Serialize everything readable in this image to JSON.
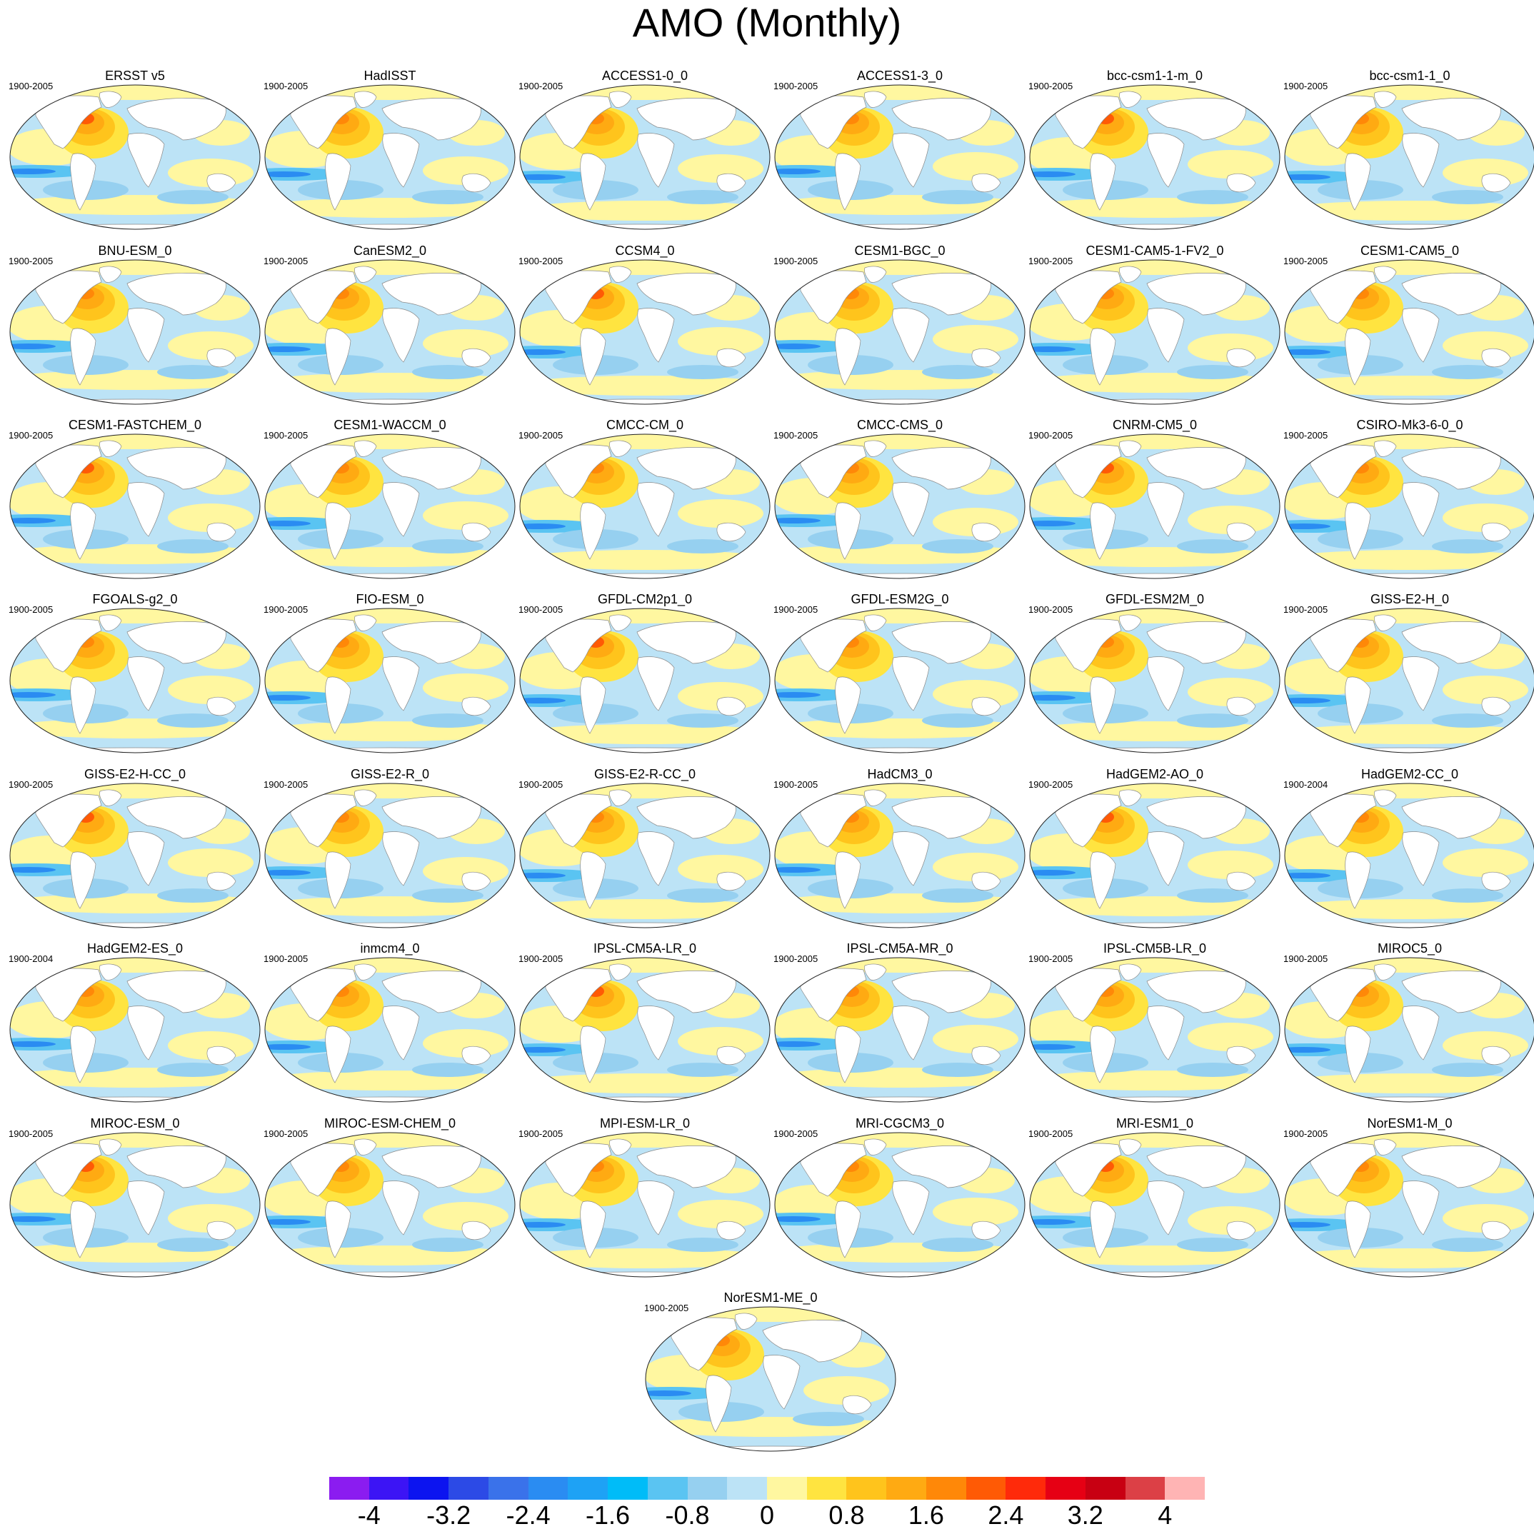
{
  "title": "AMO (Monthly)",
  "panels": [
    {
      "name": "ERSST v5",
      "period": "1900-2005"
    },
    {
      "name": "HadISST",
      "period": "1900-2005"
    },
    {
      "name": "ACCESS1-0_0",
      "period": "1900-2005"
    },
    {
      "name": "ACCESS1-3_0",
      "period": "1900-2005"
    },
    {
      "name": "bcc-csm1-1-m_0",
      "period": "1900-2005"
    },
    {
      "name": "bcc-csm1-1_0",
      "period": "1900-2005"
    },
    {
      "name": "BNU-ESM_0",
      "period": "1900-2005"
    },
    {
      "name": "CanESM2_0",
      "period": "1900-2005"
    },
    {
      "name": "CCSM4_0",
      "period": "1900-2005"
    },
    {
      "name": "CESM1-BGC_0",
      "period": "1900-2005"
    },
    {
      "name": "CESM1-CAM5-1-FV2_0",
      "period": "1900-2005"
    },
    {
      "name": "CESM1-CAM5_0",
      "period": "1900-2005"
    },
    {
      "name": "CESM1-FASTCHEM_0",
      "period": "1900-2005"
    },
    {
      "name": "CESM1-WACCM_0",
      "period": "1900-2005"
    },
    {
      "name": "CMCC-CM_0",
      "period": "1900-2005"
    },
    {
      "name": "CMCC-CMS_0",
      "period": "1900-2005"
    },
    {
      "name": "CNRM-CM5_0",
      "period": "1900-2005"
    },
    {
      "name": "CSIRO-Mk3-6-0_0",
      "period": "1900-2005"
    },
    {
      "name": "FGOALS-g2_0",
      "period": "1900-2005"
    },
    {
      "name": "FIO-ESM_0",
      "period": "1900-2005"
    },
    {
      "name": "GFDL-CM2p1_0",
      "period": "1900-2005"
    },
    {
      "name": "GFDL-ESM2G_0",
      "period": "1900-2005"
    },
    {
      "name": "GFDL-ESM2M_0",
      "period": "1900-2005"
    },
    {
      "name": "GISS-E2-H_0",
      "period": "1900-2005"
    },
    {
      "name": "GISS-E2-H-CC_0",
      "period": "1900-2005"
    },
    {
      "name": "GISS-E2-R_0",
      "period": "1900-2005"
    },
    {
      "name": "GISS-E2-R-CC_0",
      "period": "1900-2005"
    },
    {
      "name": "HadCM3_0",
      "period": "1900-2005"
    },
    {
      "name": "HadGEM2-AO_0",
      "period": "1900-2005"
    },
    {
      "name": "HadGEM2-CC_0",
      "period": "1900-2004"
    },
    {
      "name": "HadGEM2-ES_0",
      "period": "1900-2004"
    },
    {
      "name": "inmcm4_0",
      "period": "1900-2005"
    },
    {
      "name": "IPSL-CM5A-LR_0",
      "period": "1900-2005"
    },
    {
      "name": "IPSL-CM5A-MR_0",
      "period": "1900-2005"
    },
    {
      "name": "IPSL-CM5B-LR_0",
      "period": "1900-2005"
    },
    {
      "name": "MIROC5_0",
      "period": "1900-2005"
    },
    {
      "name": "MIROC-ESM_0",
      "period": "1900-2005"
    },
    {
      "name": "MIROC-ESM-CHEM_0",
      "period": "1900-2005"
    },
    {
      "name": "MPI-ESM-LR_0",
      "period": "1900-2005"
    },
    {
      "name": "MRI-CGCM3_0",
      "period": "1900-2005"
    },
    {
      "name": "MRI-ESM1_0",
      "period": "1900-2005"
    },
    {
      "name": "NorESM1-M_0",
      "period": "1900-2005"
    },
    {
      "name": "NorESM1-ME_0",
      "period": "1900-2005"
    }
  ],
  "colorbar": {
    "colors": [
      "#8b1cf0",
      "#3c14f5",
      "#0c14f0",
      "#2c4ae6",
      "#3a72ea",
      "#2a8cf2",
      "#1ea2f5",
      "#00bcf8",
      "#5ac4f2",
      "#96d0f0",
      "#bce3f6",
      "#fff7a0",
      "#ffe440",
      "#ffc41c",
      "#ffaa12",
      "#ff8808",
      "#ff5a05",
      "#ff2a0a",
      "#e60014",
      "#c80012",
      "#dc4046",
      "#ffb4b4"
    ],
    "ticks": [
      "-4",
      "-3.2",
      "-2.4",
      "-1.6",
      "-0.8",
      "0",
      "0.8",
      "1.6",
      "2.4",
      "3.2",
      "4"
    ]
  }
}
